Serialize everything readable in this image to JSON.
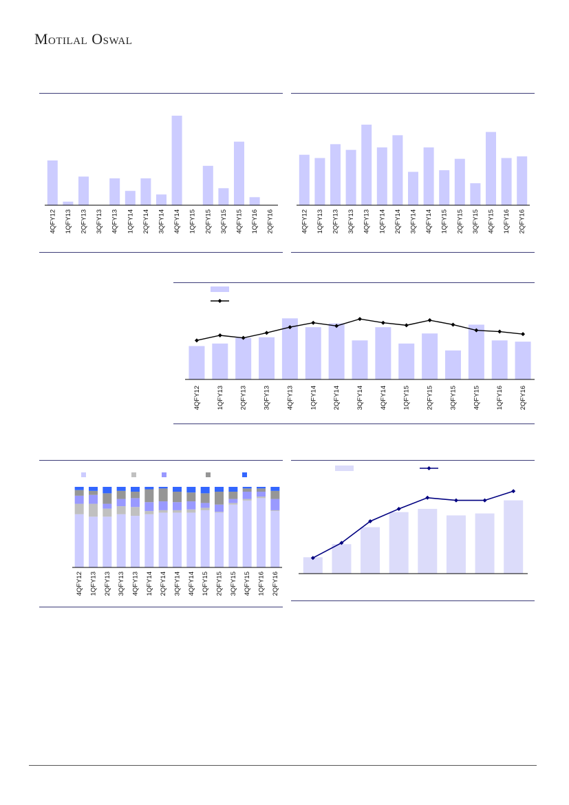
{
  "header": {
    "brand": "Motilal Oswal"
  },
  "colors": {
    "bar": "#ccccff",
    "bar_light": "#dcdcfa",
    "line": "#000000",
    "line_navy": "#000080",
    "rule": "#3c3c78",
    "stack": [
      "#ccccff",
      "#c0c0c0",
      "#9999ff",
      "#969696",
      "#3366ff"
    ]
  },
  "chart_data": [
    {
      "type": "bar",
      "categories": [
        "4QFY12",
        "1QFY13",
        "2QFY13",
        "3QFY13",
        "4QFY13",
        "1QFY14",
        "2QFY14",
        "3QFY14",
        "4QFY14",
        "1QFY15",
        "2QFY15",
        "3QFY15",
        "4QFY15",
        "1QFY16",
        "2QFY16"
      ],
      "values": [
        50,
        4,
        32,
        0,
        30,
        16,
        30,
        12,
        100,
        0,
        44,
        19,
        71,
        9,
        0
      ],
      "ylim": [
        0,
        100
      ],
      "grid": false
    },
    {
      "type": "bar",
      "categories": [
        "4QFY12",
        "1QFY13",
        "2QFY13",
        "3QFY13",
        "4QFY13",
        "1QFY14",
        "2QFY14",
        "3QFY14",
        "4QFY14",
        "1QFY15",
        "2QFY15",
        "3QFY15",
        "4QFY15",
        "1QFY16",
        "2QFY16"
      ],
      "values": [
        62,
        58,
        75,
        68,
        99,
        71,
        86,
        41,
        71,
        43,
        57,
        27,
        90,
        58,
        60
      ],
      "ylim": [
        0,
        110
      ],
      "grid": false
    },
    {
      "type": "bar",
      "categories": [
        "4QFY12",
        "1QFY13",
        "2QFY13",
        "3QFY13",
        "4QFY13",
        "1QFY14",
        "2QFY14",
        "3QFY14",
        "4QFY14",
        "1QFY15",
        "2QFY15",
        "3QFY15",
        "4QFY15",
        "1QFY16",
        "2QFY16"
      ],
      "series": [
        {
          "values": [
            53,
            57,
            66,
            67,
            97,
            83,
            89,
            62,
            83,
            57,
            73,
            46,
            87,
            62,
            60
          ]
        },
        {
          "values": [
            62,
            70,
            66,
            74,
            83,
            90,
            85,
            96,
            90,
            86,
            94,
            87,
            78,
            76,
            72
          ]
        }
      ],
      "ylim": [
        0,
        140
      ],
      "grid": false,
      "legend": "top-left"
    },
    {
      "type": "bar",
      "stacked": true,
      "categories": [
        "4QFY12",
        "1QFY13",
        "2QFY13",
        "3QFY13",
        "4QFY13",
        "1QFY14",
        "2QFY14",
        "3QFY14",
        "4QFY14",
        "1QFY15",
        "2QFY15",
        "3QFY15",
        "4QFY15",
        "1QFY16",
        "2QFY16"
      ],
      "series": [
        {
          "values": [
            66,
            63,
            63,
            66,
            64,
            66,
            68,
            68,
            68,
            71,
            68,
            78,
            83,
            86,
            70
          ]
        },
        {
          "values": [
            13,
            16,
            10,
            10,
            11,
            4,
            3,
            3,
            4,
            3,
            1,
            2,
            2,
            2,
            1
          ]
        },
        {
          "values": [
            10,
            11,
            6,
            9,
            11,
            11,
            11,
            10,
            10,
            6,
            9,
            5,
            9,
            6,
            14
          ]
        },
        {
          "values": [
            7,
            5,
            13,
            10,
            8,
            16,
            16,
            13,
            11,
            12,
            16,
            9,
            4,
            4,
            10
          ]
        },
        {
          "values": [
            4,
            5,
            8,
            5,
            6,
            3,
            2,
            6,
            7,
            8,
            6,
            6,
            2,
            2,
            5
          ]
        }
      ],
      "ylim": [
        0,
        100
      ],
      "grid": false,
      "legend": "top"
    },
    {
      "type": "bar",
      "categories": [
        "",
        "",
        "",
        "",
        "",
        "",
        "",
        ""
      ],
      "series": [
        {
          "values": [
            25,
            45,
            71,
            94,
            99,
            89,
            92,
            112
          ]
        },
        {
          "values": [
            24,
            47,
            80,
            99,
            116,
            112,
            112,
            126
          ]
        }
      ],
      "ylim": [
        0,
        140
      ],
      "grid": false,
      "legend": "top"
    }
  ]
}
